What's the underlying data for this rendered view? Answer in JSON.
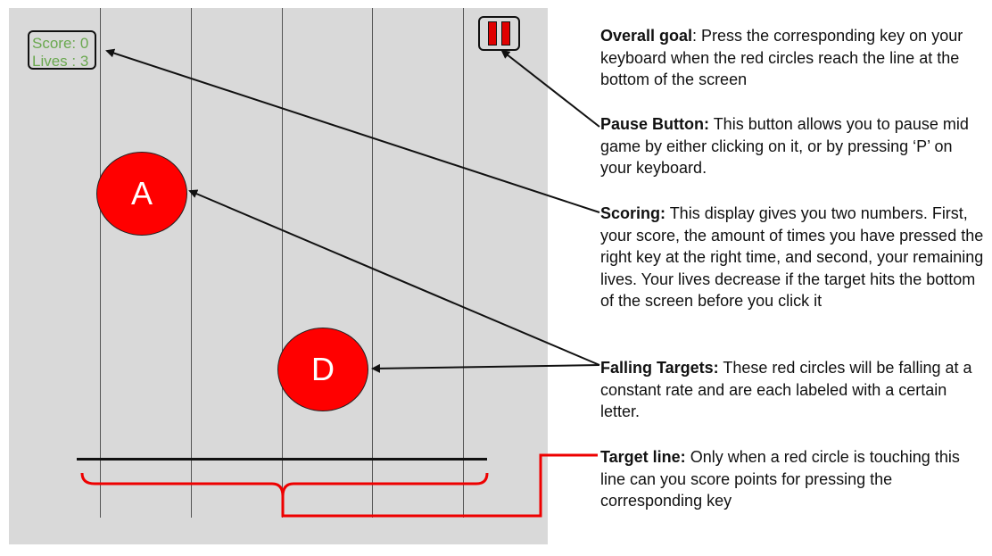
{
  "game": {
    "score_label": "Score: 0",
    "lives_label": "Lives : 3",
    "pause_icon": "pause-icon",
    "targets": [
      {
        "letter": "A"
      },
      {
        "letter": "D"
      }
    ],
    "colors": {
      "target": "#ff0000",
      "score_text": "#6aa84f",
      "background": "#d9d9d9",
      "bracket": "#ee0000"
    }
  },
  "notes": {
    "overall_goal": {
      "title": "Overall goal",
      "text": ": Press the corresponding key on your keyboard when the red circles reach the line at the bottom of the screen"
    },
    "pause_button": {
      "title": "Pause Button:",
      "text": " This button allows you to pause mid game by either clicking on it, or by pressing ‘P’ on your keyboard."
    },
    "scoring": {
      "title": "Scoring:",
      "text": " This display gives you two numbers. First, your score, the amount of times you have pressed the right key at the right time, and second, your remaining lives. Your lives decrease if the target hits the bottom of the screen before you click it"
    },
    "falling_targets": {
      "title": "Falling Targets:",
      "text": " These red circles will be falling at a constant rate and are each labeled with a certain letter."
    },
    "target_line": {
      "title": "Target line:",
      "text": " Only when a red circle is touching this line can you score points for pressing the corresponding key"
    }
  }
}
